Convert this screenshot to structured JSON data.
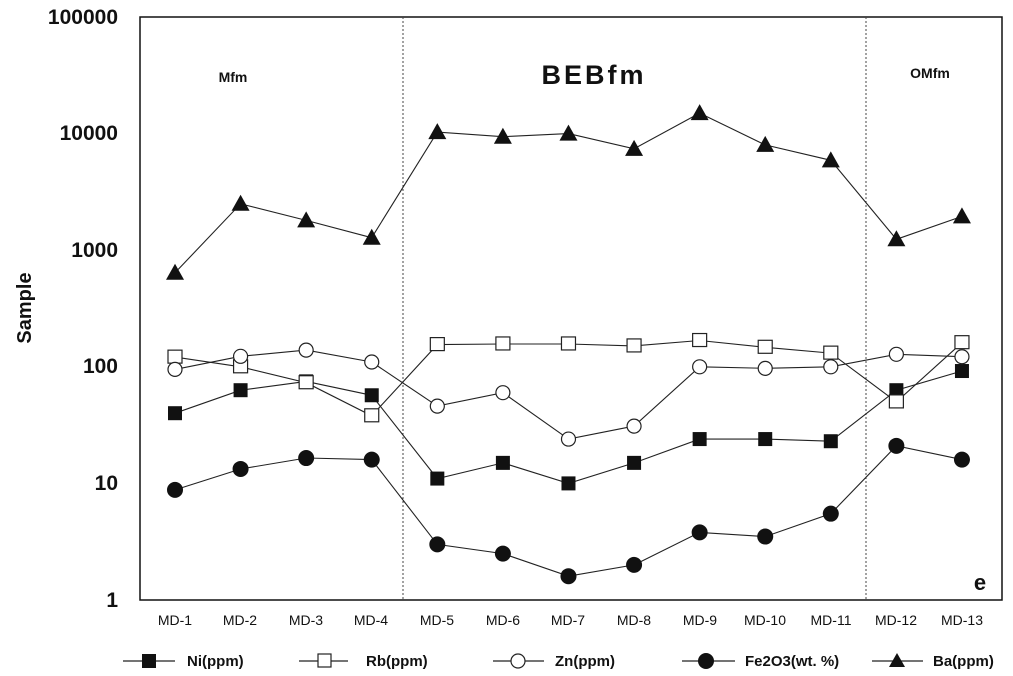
{
  "chart_data": {
    "type": "line",
    "ylabel": "Sample",
    "yscale": "log",
    "ylim": [
      1,
      100000
    ],
    "yticks": [
      "1",
      "10",
      "100",
      "1000",
      "10000",
      "100000"
    ],
    "categories": [
      "MD-1",
      "MD-2",
      "MD-3",
      "MD-4",
      "MD-5",
      "MD-6",
      "MD-7",
      "MD-8",
      "MD-9",
      "MD-10",
      "MD-11",
      "MD-12",
      "MD-13"
    ],
    "zones": [
      {
        "label": "Mfm",
        "from": "MD-1",
        "to": "MD-4"
      },
      {
        "label": "BEBfm",
        "from": "MD-5",
        "to": "MD-11"
      },
      {
        "label": "OMfm",
        "from": "MD-12",
        "to": "MD-13"
      }
    ],
    "panel_label": "e",
    "legend_position": "bottom",
    "grid": false,
    "series": [
      {
        "name": "Ni(ppm)",
        "marker": "square-filled",
        "values": [
          40,
          63,
          75,
          57,
          11,
          15,
          10,
          15,
          24,
          24,
          23,
          63,
          92
        ]
      },
      {
        "name": "Rb(ppm)",
        "marker": "square-open",
        "values": [
          121,
          100,
          73,
          38,
          155,
          157,
          157,
          151,
          168,
          147,
          131,
          50,
          161
        ]
      },
      {
        "name": "Zn(ppm)",
        "marker": "circle-open",
        "values": [
          95,
          123,
          139,
          110,
          46,
          60,
          24,
          31,
          100,
          97,
          100,
          128,
          122
        ]
      },
      {
        "name": "Fe2O3(wt. %)",
        "marker": "circle-filled",
        "values": [
          8.8,
          13.3,
          16.5,
          16,
          3,
          2.5,
          1.6,
          2,
          3.8,
          3.5,
          5.5,
          21,
          16
        ]
      },
      {
        "name": "Ba(ppm)",
        "marker": "triangle-filled",
        "values": [
          640,
          2500,
          1800,
          1280,
          10300,
          9400,
          10000,
          7400,
          15000,
          8000,
          5900,
          1240,
          1950
        ]
      }
    ]
  }
}
